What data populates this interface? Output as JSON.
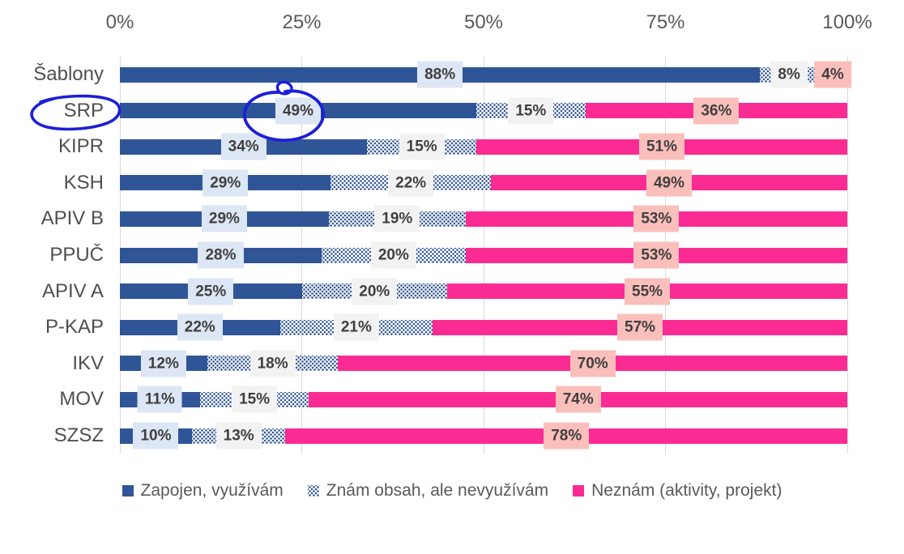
{
  "chart_data": {
    "type": "bar",
    "orientation": "horizontal",
    "stacked": true,
    "title": "",
    "xlabel": "",
    "ylabel": "",
    "xlim": [
      0,
      100
    ],
    "x_ticks": [
      "0%",
      "25%",
      "50%",
      "75%",
      "100%"
    ],
    "grid": "vertical",
    "legend_position": "bottom",
    "categories": [
      "Šablony",
      "SRP",
      "KIPR",
      "KSH",
      "APIV B",
      "PPUČ",
      "APIV A",
      "P-KAP",
      "IKV",
      "MOV",
      "SZSZ"
    ],
    "series": [
      {
        "name": "Zapojen, využívám",
        "values": [
          88,
          49,
          34,
          29,
          29,
          28,
          25,
          22,
          12,
          11,
          10
        ],
        "labels": [
          "88%",
          "49%",
          "34%",
          "29%",
          "29%",
          "28%",
          "25%",
          "22%",
          "12%",
          "11%",
          "10%"
        ],
        "color": "#2f5597",
        "fill": "solid",
        "label_bg": "#dce6f4"
      },
      {
        "name": "Znám obsah, ale nevyužívám",
        "values": [
          8,
          15,
          15,
          22,
          19,
          20,
          20,
          21,
          18,
          15,
          13
        ],
        "labels": [
          "8%",
          "15%",
          "15%",
          "22%",
          "19%",
          "20%",
          "20%",
          "21%",
          "18%",
          "15%",
          "13%"
        ],
        "color": "#2f5597",
        "fill": "checker-pattern",
        "label_bg": "#f2f2f2"
      },
      {
        "name": "Neznám (aktivity, projekt)",
        "values": [
          4,
          36,
          51,
          49,
          53,
          53,
          55,
          57,
          70,
          74,
          78
        ],
        "labels": [
          "4%",
          "36%",
          "51%",
          "49%",
          "53%",
          "53%",
          "55%",
          "57%",
          "70%",
          "74%",
          "78%"
        ],
        "color": "#fb2b94",
        "fill": "solid",
        "label_bg": "#fbbfbb"
      }
    ]
  },
  "annotations": {
    "pen_color": "#1b1fd6",
    "items": [
      {
        "shape": "hand-drawn-ellipse",
        "around": "category label SRP"
      },
      {
        "shape": "hand-drawn-ellipse-with-loop",
        "around": "value label 49% of SRP"
      }
    ]
  }
}
